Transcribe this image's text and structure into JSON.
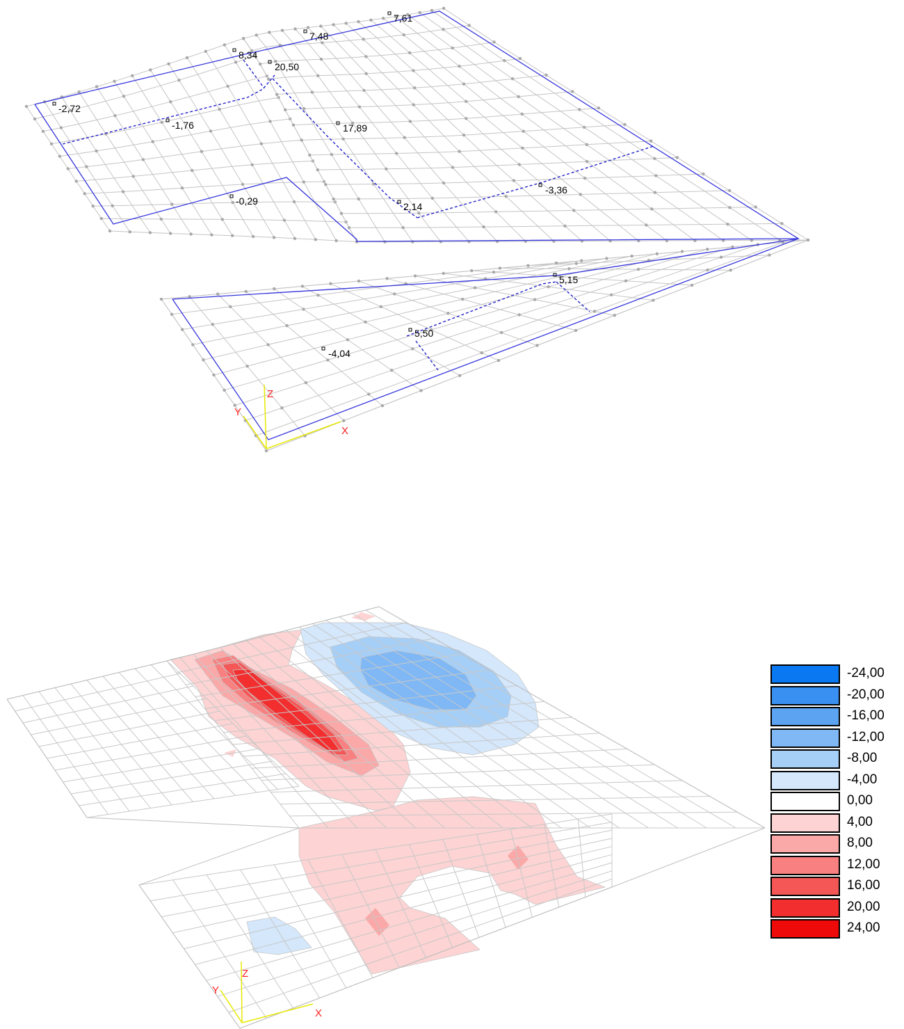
{
  "deformed_view": {
    "value_labels": [
      "-2,72",
      "-1,76",
      "-0,29",
      "8,34",
      "7,48",
      "7,61",
      "20,50",
      "17,89",
      "2,14",
      "-3,36",
      "5,15",
      "5,50",
      "-4,04"
    ],
    "axes": {
      "x": "X",
      "y": "Y",
      "z": "Z"
    }
  },
  "contour_view": {
    "axes": {
      "x": "X",
      "y": "Y",
      "z": "Z"
    }
  },
  "legend": {
    "items": [
      {
        "value": "-24,00",
        "color": "#0a78f0"
      },
      {
        "value": "-20,00",
        "color": "#3a90f0"
      },
      {
        "value": "-16,00",
        "color": "#5ca3f2"
      },
      {
        "value": "-12,00",
        "color": "#7fb8f5"
      },
      {
        "value": "-8,00",
        "color": "#a6cff8"
      },
      {
        "value": "-4,00",
        "color": "#d4e7fb"
      },
      {
        "value": "0,00",
        "color": "#ffffff"
      },
      {
        "value": "4,00",
        "color": "#fdd3d3"
      },
      {
        "value": "8,00",
        "color": "#fba8a8"
      },
      {
        "value": "12,00",
        "color": "#f88080"
      },
      {
        "value": "16,00",
        "color": "#f55656"
      },
      {
        "value": "20,00",
        "color": "#f22e2e"
      },
      {
        "value": "24,00",
        "color": "#ef0a0a"
      }
    ]
  },
  "colors": {
    "mesh": "#c4c4c4",
    "node": "#a8a8a8",
    "outline": "#3333dd",
    "axis_line": "#e8e800",
    "axis_label": "#ff2020"
  }
}
